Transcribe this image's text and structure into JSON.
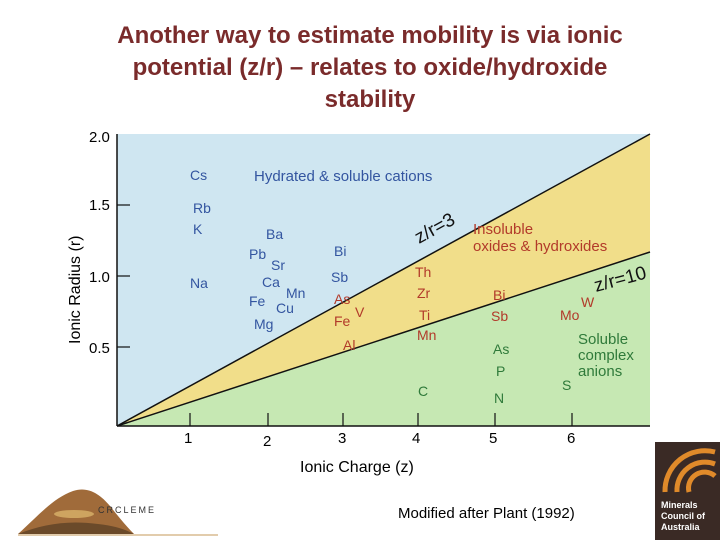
{
  "title_lines": [
    "Another way to estimate mobility is via ionic",
    "potential (z/r) – relates to oxide/hydroxide",
    "stability"
  ],
  "axes": {
    "ylabel": "Ionic Radius (r)",
    "xlabel": "Ionic Charge (z)",
    "y_ticks": [
      "2.0",
      "1.5",
      "1.0",
      "0.5"
    ],
    "x_ticks": [
      "1",
      "2",
      "3",
      "4",
      "5",
      "6"
    ]
  },
  "regions": {
    "soluble_cations": "Hydrated & soluble cations",
    "insoluble_line1": "Insoluble",
    "insoluble_line2": "oxides & hydroxides",
    "complex_line1": "Soluble",
    "complex_line2": "complex",
    "complex_line3": "anions"
  },
  "boundaries": {
    "line1": "z/r=3",
    "line2": "z/r=10"
  },
  "colors": {
    "soluble_cations_fill": "#cfe6f1",
    "insoluble_fill": "#f1de8a",
    "complex_fill": "#c6e8b3",
    "cation_text": "#3355a0",
    "insoluble_text": "#b23a2a",
    "complex_text": "#2f7a3a",
    "title_color": "#7a2b2b"
  },
  "elements": {
    "cs": "Cs",
    "rb": "Rb",
    "k": "K",
    "na": "Na",
    "ba": "Ba",
    "pb": "Pb",
    "sr": "Sr",
    "ca": "Ca",
    "mn": "Mn",
    "fe2": "Fe",
    "cu": "Cu",
    "mg": "Mg",
    "bi3": "Bi",
    "sb3": "Sb",
    "as3": "As",
    "v": "V",
    "fe3": "Fe",
    "al": "Al",
    "th": "Th",
    "zr": "Zr",
    "ti": "Ti",
    "mn4": "Mn",
    "c": "C",
    "bi5": "Bi",
    "sb5": "Sb",
    "as5": "As",
    "p": "P",
    "n": "N",
    "mo": "Mo",
    "w": "W",
    "s": "S"
  },
  "credit": "Modified after Plant (1992)",
  "logos": {
    "crc": "CRCLEME",
    "mca_line1": "Minerals",
    "mca_line2": "Council of",
    "mca_line3": "Australia"
  }
}
